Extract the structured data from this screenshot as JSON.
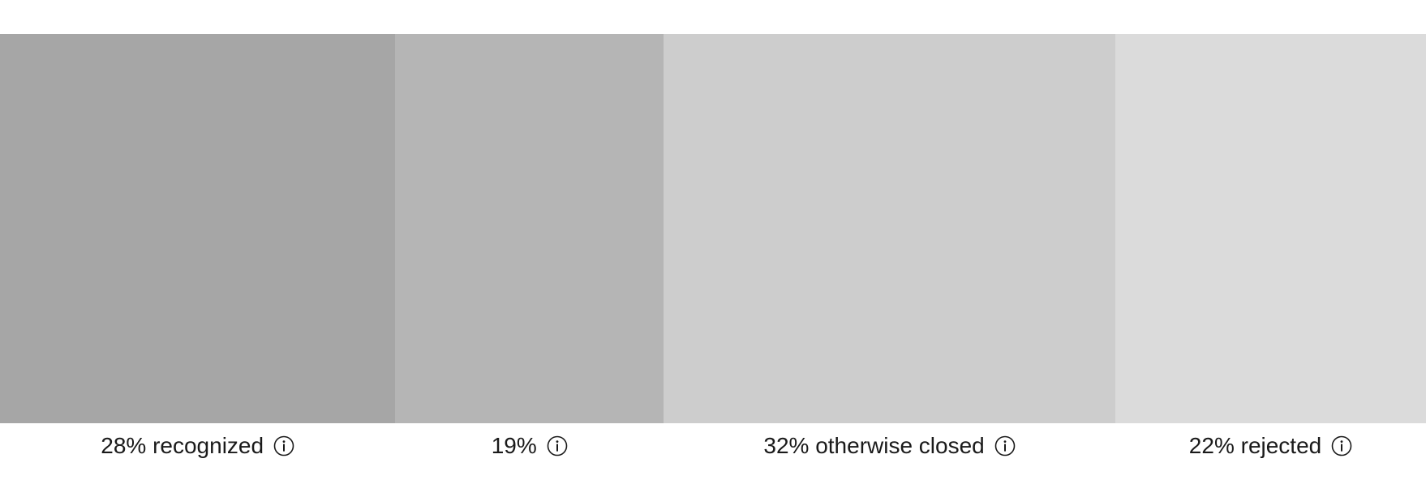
{
  "chart_data": {
    "type": "bar",
    "orientation": "stacked-horizontal",
    "categories": [
      "recognized",
      "",
      "otherwise closed",
      "rejected"
    ],
    "values": [
      28,
      19,
      32,
      22
    ],
    "unit": "%",
    "segments": [
      {
        "value": 28,
        "value_label": "28%",
        "label": "recognized",
        "color": "#a6a6a6"
      },
      {
        "value": 19,
        "value_label": "19%",
        "label": "",
        "color": "#b5b5b5"
      },
      {
        "value": 32,
        "value_label": "32%",
        "label": "otherwise closed",
        "color": "#cdcdcd"
      },
      {
        "value": 22,
        "value_label": "22%",
        "label": "rejected",
        "color": "#dbdbdb"
      }
    ],
    "legend": "none",
    "grid": false
  },
  "icons": {
    "info": "info-icon"
  }
}
